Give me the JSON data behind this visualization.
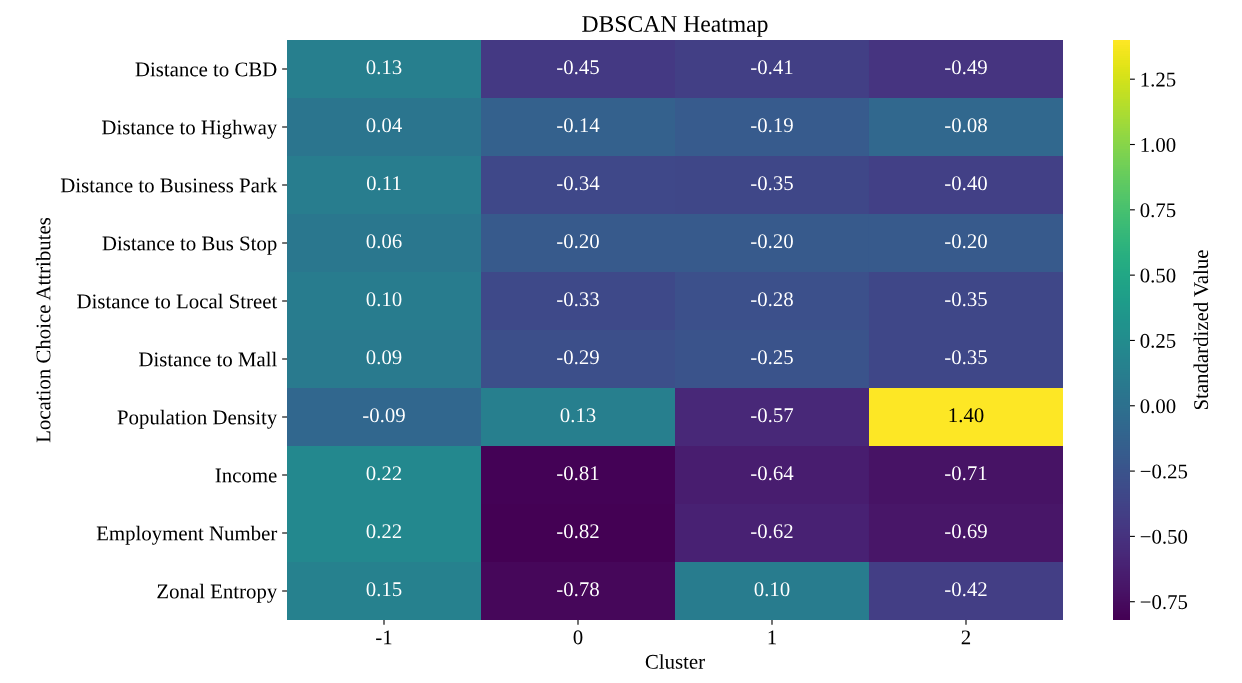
{
  "chart_data": {
    "type": "heatmap",
    "title": "DBSCAN Heatmap",
    "xlabel": "Cluster",
    "ylabel": "Location Choice Attributes",
    "clabel": "Standardized Value",
    "categories": [
      "-1",
      "0",
      "1",
      "2"
    ],
    "y_categories": [
      "Distance to CBD",
      "Distance to Highway",
      "Distance to Business Park",
      "Distance to Bus Stop",
      "Distance to Local Street",
      "Distance to Mall",
      "Population Density",
      "Income",
      "Employment Number",
      "Zonal Entropy"
    ],
    "cells": [
      [
        0.13,
        -0.45,
        -0.41,
        -0.49
      ],
      [
        0.04,
        -0.14,
        -0.19,
        -0.08
      ],
      [
        0.11,
        -0.34,
        -0.35,
        -0.4
      ],
      [
        0.06,
        -0.2,
        -0.2,
        -0.2
      ],
      [
        0.1,
        -0.33,
        -0.28,
        -0.35
      ],
      [
        0.09,
        -0.29,
        -0.25,
        -0.35
      ],
      [
        -0.09,
        0.13,
        -0.57,
        1.4
      ],
      [
        0.22,
        -0.81,
        -0.64,
        -0.71
      ],
      [
        0.22,
        -0.82,
        -0.62,
        -0.69
      ],
      [
        0.15,
        -0.78,
        0.1,
        -0.42
      ]
    ],
    "cell_labels": [
      [
        "0.13",
        "-0.45",
        "-0.41",
        "-0.49"
      ],
      [
        "0.04",
        "-0.14",
        "-0.19",
        "-0.08"
      ],
      [
        "0.11",
        "-0.34",
        "-0.35",
        "-0.40"
      ],
      [
        "0.06",
        "-0.20",
        "-0.20",
        "-0.20"
      ],
      [
        "0.10",
        "-0.33",
        "-0.28",
        "-0.35"
      ],
      [
        "0.09",
        "-0.29",
        "-0.25",
        "-0.35"
      ],
      [
        "-0.09",
        "0.13",
        "-0.57",
        "1.40"
      ],
      [
        "0.22",
        "-0.81",
        "-0.64",
        "-0.71"
      ],
      [
        "0.22",
        "-0.82",
        "-0.62",
        "-0.69"
      ],
      [
        "0.15",
        "-0.78",
        "0.10",
        "-0.42"
      ]
    ],
    "clim": [
      -0.82,
      1.4
    ],
    "cticks": [
      {
        "value": -0.75,
        "label": "−0.75"
      },
      {
        "value": -0.5,
        "label": "−0.50"
      },
      {
        "value": -0.25,
        "label": "−0.25"
      },
      {
        "value": 0,
        "label": "0.00"
      },
      {
        "value": 0.25,
        "label": "0.25"
      },
      {
        "value": 0.5,
        "label": "0.50"
      },
      {
        "value": 0.75,
        "label": "0.75"
      },
      {
        "value": 1.0,
        "label": "1.00"
      },
      {
        "value": 1.25,
        "label": "1.25"
      }
    ]
  }
}
